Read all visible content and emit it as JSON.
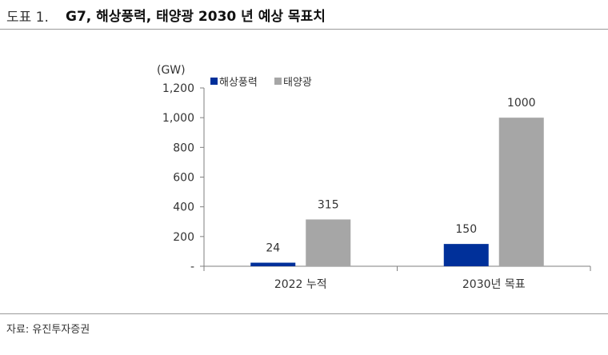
{
  "header": {
    "figure_label": "도표 1.",
    "title": "G7, 해상풍력, 태양광 2030 년 예상 목표치"
  },
  "source": "자료: 유진투자증권",
  "chart_data": {
    "type": "bar",
    "unit_label": "(GW)",
    "categories": [
      "2022 누적",
      "2030년 목표"
    ],
    "series": [
      {
        "name": "해상풍력",
        "color": "#00309a",
        "values": [
          24,
          150
        ],
        "labels": [
          "24",
          "150"
        ]
      },
      {
        "name": "태양광",
        "color": "#a6a6a6",
        "values": [
          315,
          1000
        ],
        "labels": [
          "315",
          "1000"
        ]
      }
    ],
    "ylim": [
      0,
      1200
    ],
    "yticks": [
      0,
      200,
      400,
      600,
      800,
      1000,
      1200
    ],
    "ytick_labels": [
      "-",
      "200",
      "400",
      "600",
      "800",
      "1,000",
      "1,200"
    ],
    "legend_position": "top-left",
    "grid": false
  }
}
